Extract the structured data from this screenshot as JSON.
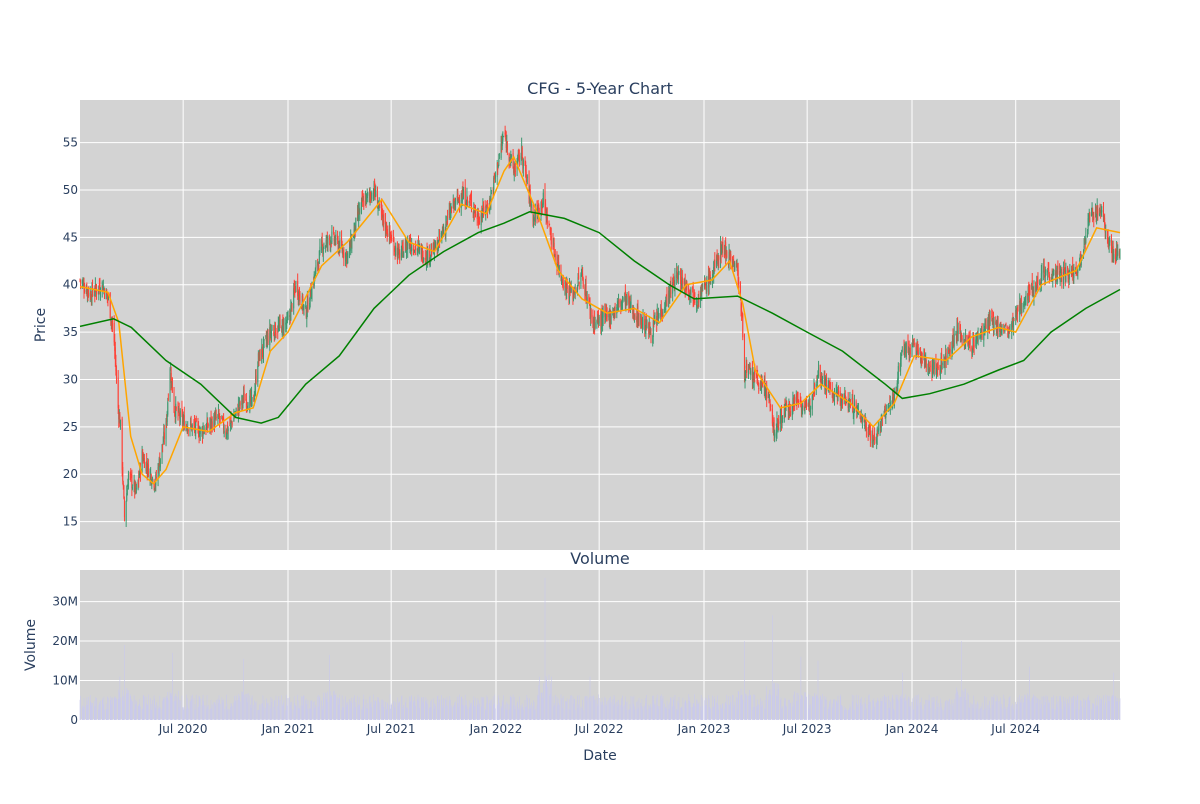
{
  "chart_data": [
    {
      "type": "candlestick",
      "title": "CFG - 5-Year Chart",
      "xlabel": "",
      "ylabel": "Price",
      "x_range": [
        "2020-01-02",
        "2024-12-31"
      ],
      "ylim": [
        12,
        59.5
      ],
      "y_ticks": [
        15,
        20,
        25,
        30,
        35,
        40,
        45,
        50,
        55
      ],
      "colors": {
        "increasing": "#3d9970",
        "decreasing": "#ff4136",
        "ma_short": "#ffa500",
        "ma_long": "#008000",
        "plot_bg": "#d3d3d3",
        "grid": "#ffffff"
      },
      "close_keypoints": [
        [
          "2020-01-02",
          40.5
        ],
        [
          "2020-01-20",
          39.0
        ],
        [
          "2020-02-10",
          40.0
        ],
        [
          "2020-02-21",
          38.5
        ],
        [
          "2020-03-02",
          34.0
        ],
        [
          "2020-03-09",
          27.0
        ],
        [
          "2020-03-13",
          25.0
        ],
        [
          "2020-03-20",
          15.5
        ],
        [
          "2020-03-27",
          20.0
        ],
        [
          "2020-04-10",
          18.0
        ],
        [
          "2020-04-20",
          22.0
        ],
        [
          "2020-05-01",
          20.5
        ],
        [
          "2020-05-13",
          19.0
        ],
        [
          "2020-06-01",
          25.0
        ],
        [
          "2020-06-08",
          31.5
        ],
        [
          "2020-06-15",
          27.0
        ],
        [
          "2020-07-01",
          25.5
        ],
        [
          "2020-08-01",
          24.5
        ],
        [
          "2020-09-01",
          26.0
        ],
        [
          "2020-09-15",
          24.5
        ],
        [
          "2020-10-15",
          28.0
        ],
        [
          "2020-11-01",
          27.5
        ],
        [
          "2020-11-09",
          32.0
        ],
        [
          "2020-12-01",
          35.0
        ],
        [
          "2021-01-01",
          36.0
        ],
        [
          "2021-01-15",
          40.0
        ],
        [
          "2021-02-01",
          37.0
        ],
        [
          "2021-03-01",
          44.0
        ],
        [
          "2021-03-20",
          45.0
        ],
        [
          "2021-04-15",
          43.0
        ],
        [
          "2021-05-10",
          48.5
        ],
        [
          "2021-06-01",
          50.0
        ],
        [
          "2021-06-15",
          47.0
        ],
        [
          "2021-07-15",
          43.0
        ],
        [
          "2021-08-01",
          44.5
        ],
        [
          "2021-09-01",
          43.0
        ],
        [
          "2021-09-20",
          44.0
        ],
        [
          "2021-10-15",
          48.0
        ],
        [
          "2021-11-01",
          49.5
        ],
        [
          "2021-11-20",
          48.5
        ],
        [
          "2021-12-01",
          47.0
        ],
        [
          "2021-12-20",
          48.5
        ],
        [
          "2022-01-05",
          53.0
        ],
        [
          "2022-01-15",
          56.0
        ],
        [
          "2022-02-01",
          52.0
        ],
        [
          "2022-02-15",
          54.0
        ],
        [
          "2022-03-08",
          47.0
        ],
        [
          "2022-03-25",
          49.0
        ],
        [
          "2022-04-15",
          43.0
        ],
        [
          "2022-05-01",
          40.0
        ],
        [
          "2022-05-15",
          39.0
        ],
        [
          "2022-06-01",
          41.0
        ],
        [
          "2022-06-20",
          36.0
        ],
        [
          "2022-07-15",
          36.5
        ],
        [
          "2022-08-15",
          38.5
        ],
        [
          "2022-09-01",
          37.0
        ],
        [
          "2022-09-30",
          35.0
        ],
        [
          "2022-10-20",
          37.5
        ],
        [
          "2022-11-15",
          41.0
        ],
        [
          "2022-12-01",
          40.0
        ],
        [
          "2022-12-20",
          38.5
        ],
        [
          "2023-01-15",
          41.0
        ],
        [
          "2023-02-01",
          44.0
        ],
        [
          "2023-02-15",
          43.0
        ],
        [
          "2023-03-01",
          41.5
        ],
        [
          "2023-03-09",
          36.0
        ],
        [
          "2023-03-13",
          31.0
        ],
        [
          "2023-04-01",
          30.0
        ],
        [
          "2023-04-20",
          29.0
        ],
        [
          "2023-05-04",
          24.5
        ],
        [
          "2023-05-20",
          26.5
        ],
        [
          "2023-06-15",
          28.0
        ],
        [
          "2023-07-01",
          26.5
        ],
        [
          "2023-07-20",
          31.0
        ],
        [
          "2023-08-15",
          28.5
        ],
        [
          "2023-09-15",
          27.5
        ],
        [
          "2023-10-05",
          26.0
        ],
        [
          "2023-10-27",
          23.5
        ],
        [
          "2023-11-15",
          26.5
        ],
        [
          "2023-12-01",
          28.0
        ],
        [
          "2023-12-14",
          33.0
        ],
        [
          "2024-01-05",
          33.5
        ],
        [
          "2024-01-20",
          32.0
        ],
        [
          "2024-02-15",
          31.0
        ],
        [
          "2024-03-01",
          32.5
        ],
        [
          "2024-03-20",
          35.0
        ],
        [
          "2024-04-15",
          33.5
        ],
        [
          "2024-05-15",
          36.0
        ],
        [
          "2024-06-01",
          35.5
        ],
        [
          "2024-06-20",
          35.0
        ],
        [
          "2024-07-15",
          38.5
        ],
        [
          "2024-08-05",
          40.0
        ],
        [
          "2024-08-20",
          41.5
        ],
        [
          "2024-09-10",
          41.0
        ],
        [
          "2024-10-01",
          41.0
        ],
        [
          "2024-10-20",
          42.0
        ],
        [
          "2024-11-06",
          47.0
        ],
        [
          "2024-11-25",
          48.0
        ],
        [
          "2024-12-10",
          45.0
        ],
        [
          "2024-12-20",
          43.0
        ],
        [
          "2024-12-31",
          43.5
        ]
      ],
      "series": [
        {
          "name": "",
          "kind": "moving-average-short",
          "color": "#ffa500",
          "points": [
            [
              "2020-01-02",
              39.8
            ],
            [
              "2020-02-20",
              39.2
            ],
            [
              "2020-03-10",
              36.0
            ],
            [
              "2020-03-31",
              24.0
            ],
            [
              "2020-04-20",
              20.0
            ],
            [
              "2020-05-10",
              19.0
            ],
            [
              "2020-06-01",
              20.5
            ],
            [
              "2020-07-01",
              25.0
            ],
            [
              "2020-08-15",
              24.5
            ],
            [
              "2020-10-01",
              26.5
            ],
            [
              "2020-11-01",
              27.0
            ],
            [
              "2020-12-01",
              33.0
            ],
            [
              "2021-01-01",
              35.0
            ],
            [
              "2021-03-01",
              42.0
            ],
            [
              "2021-04-15",
              44.5
            ],
            [
              "2021-06-15",
              49.0
            ],
            [
              "2021-08-01",
              44.5
            ],
            [
              "2021-09-15",
              43.5
            ],
            [
              "2021-11-01",
              48.5
            ],
            [
              "2021-12-15",
              47.5
            ],
            [
              "2022-01-15",
              52.0
            ],
            [
              "2022-02-01",
              53.5
            ],
            [
              "2022-03-15",
              47.5
            ],
            [
              "2022-04-20",
              41.5
            ],
            [
              "2022-06-01",
              38.5
            ],
            [
              "2022-07-15",
              37.0
            ],
            [
              "2022-09-01",
              37.5
            ],
            [
              "2022-10-15",
              36.0
            ],
            [
              "2022-12-01",
              40.0
            ],
            [
              "2023-01-15",
              40.5
            ],
            [
              "2023-02-15",
              42.5
            ],
            [
              "2023-03-10",
              38.0
            ],
            [
              "2023-04-01",
              31.0
            ],
            [
              "2023-05-15",
              27.0
            ],
            [
              "2023-06-20",
              27.5
            ],
            [
              "2023-07-25",
              29.5
            ],
            [
              "2023-09-15",
              27.5
            ],
            [
              "2023-10-25",
              25.0
            ],
            [
              "2023-12-01",
              27.5
            ],
            [
              "2024-01-05",
              32.5
            ],
            [
              "2024-03-01",
              32.0
            ],
            [
              "2024-04-15",
              34.5
            ],
            [
              "2024-06-01",
              35.5
            ],
            [
              "2024-07-01",
              35.0
            ],
            [
              "2024-08-15",
              40.0
            ],
            [
              "2024-10-15",
              41.5
            ],
            [
              "2024-11-20",
              46.0
            ],
            [
              "2024-12-31",
              45.5
            ]
          ]
        },
        {
          "name": "",
          "kind": "moving-average-long",
          "color": "#008000",
          "points": [
            [
              "2020-01-02",
              35.6
            ],
            [
              "2020-03-01",
              36.4
            ],
            [
              "2020-04-01",
              35.5
            ],
            [
              "2020-06-01",
              32.0
            ],
            [
              "2020-08-01",
              29.5
            ],
            [
              "2020-10-01",
              26.0
            ],
            [
              "2020-11-15",
              25.4
            ],
            [
              "2020-12-15",
              26.0
            ],
            [
              "2021-02-01",
              29.5
            ],
            [
              "2021-04-01",
              32.5
            ],
            [
              "2021-06-01",
              37.5
            ],
            [
              "2021-08-01",
              41.0
            ],
            [
              "2021-10-01",
              43.5
            ],
            [
              "2021-12-01",
              45.5
            ],
            [
              "2022-01-15",
              46.5
            ],
            [
              "2022-03-01",
              47.7
            ],
            [
              "2022-05-01",
              47.0
            ],
            [
              "2022-07-01",
              45.5
            ],
            [
              "2022-09-01",
              42.5
            ],
            [
              "2022-11-01",
              40.0
            ],
            [
              "2022-12-15",
              38.5
            ],
            [
              "2023-03-01",
              38.8
            ],
            [
              "2023-05-01",
              37.0
            ],
            [
              "2023-07-01",
              35.0
            ],
            [
              "2023-09-01",
              33.0
            ],
            [
              "2023-11-15",
              29.5
            ],
            [
              "2023-12-15",
              28.0
            ],
            [
              "2024-02-01",
              28.5
            ],
            [
              "2024-04-01",
              29.5
            ],
            [
              "2024-06-01",
              31.0
            ],
            [
              "2024-07-15",
              32.0
            ],
            [
              "2024-09-01",
              35.0
            ],
            [
              "2024-11-01",
              37.5
            ],
            [
              "2024-12-31",
              39.5
            ]
          ]
        }
      ]
    },
    {
      "type": "bar",
      "title": "Volume",
      "xlabel": "Date",
      "ylabel": "Volume",
      "ylim": [
        0,
        38000000
      ],
      "y_ticks": [
        0,
        10000000,
        20000000,
        30000000
      ],
      "y_tick_labels": [
        "0",
        "10M",
        "20M",
        "30M"
      ],
      "x_ticks": [
        "2020-07-01",
        "2021-01-01",
        "2021-07-01",
        "2022-01-01",
        "2022-07-01",
        "2023-01-01",
        "2023-07-01",
        "2024-01-01",
        "2024-07-01"
      ],
      "x_tick_labels": [
        "Jul 2020",
        "Jan 2021",
        "Jul 2021",
        "Jan 2022",
        "Jul 2022",
        "Jan 2023",
        "Jul 2023",
        "Jan 2024",
        "Jul 2024"
      ],
      "bar_color": "#c9c9ec",
      "baseline_volume": 4500000,
      "volume_spikes": [
        [
          "2020-03-12",
          11000000
        ],
        [
          "2020-03-20",
          19000000
        ],
        [
          "2020-06-12",
          17000000
        ],
        [
          "2020-10-15",
          15500000
        ],
        [
          "2021-03-15",
          16500000
        ],
        [
          "2022-03-28",
          36000000
        ],
        [
          "2022-06-15",
          11000000
        ],
        [
          "2023-03-13",
          20000000
        ],
        [
          "2023-05-01",
          26500000
        ],
        [
          "2023-06-20",
          16000000
        ],
        [
          "2023-07-20",
          15000000
        ],
        [
          "2023-12-15",
          12000000
        ],
        [
          "2024-03-28",
          20000000
        ],
        [
          "2024-07-25",
          13500000
        ],
        [
          "2024-12-20",
          12000000
        ]
      ]
    }
  ]
}
